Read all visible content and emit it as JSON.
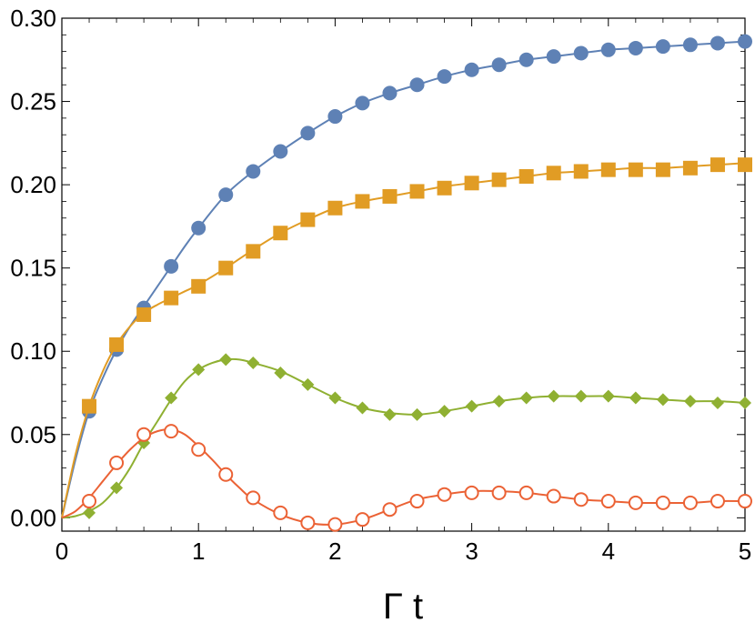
{
  "chart_data": {
    "type": "line",
    "title": "",
    "xlabel": "Γ t",
    "ylabel": "",
    "xlim": [
      0,
      5
    ],
    "ylim": [
      -0.008,
      0.3
    ],
    "grid": false,
    "legend": "none",
    "x_ticks": [
      {
        "value": 0,
        "label": "0"
      },
      {
        "value": 1,
        "label": "1"
      },
      {
        "value": 2,
        "label": "2"
      },
      {
        "value": 3,
        "label": "3"
      },
      {
        "value": 4,
        "label": "4"
      },
      {
        "value": 5,
        "label": "5"
      }
    ],
    "y_ticks": [
      {
        "value": 0.0,
        "label": "0.00"
      },
      {
        "value": 0.05,
        "label": "0.05"
      },
      {
        "value": 0.1,
        "label": "0.10"
      },
      {
        "value": 0.15,
        "label": "0.15"
      },
      {
        "value": 0.2,
        "label": "0.20"
      },
      {
        "value": 0.25,
        "label": "0.25"
      },
      {
        "value": 0.3,
        "label": "0.30"
      }
    ],
    "series": [
      {
        "marker": "filled-circle",
        "color": "#5E81B5",
        "curve": [
          [
            0,
            0
          ],
          [
            0.1,
            0.035
          ],
          [
            0.2,
            0.064
          ],
          [
            0.3,
            0.084
          ],
          [
            0.4,
            0.101
          ],
          [
            0.5,
            0.115
          ],
          [
            0.6,
            0.127
          ],
          [
            0.7,
            0.139
          ],
          [
            0.8,
            0.151
          ],
          [
            0.9,
            0.163
          ],
          [
            1.0,
            0.174
          ],
          [
            1.2,
            0.194
          ],
          [
            1.4,
            0.208
          ],
          [
            1.6,
            0.22
          ],
          [
            1.8,
            0.231
          ],
          [
            2.0,
            0.241
          ],
          [
            2.2,
            0.249
          ],
          [
            2.4,
            0.255
          ],
          [
            2.6,
            0.26
          ],
          [
            2.8,
            0.265
          ],
          [
            3.0,
            0.269
          ],
          [
            3.2,
            0.272
          ],
          [
            3.4,
            0.275
          ],
          [
            3.6,
            0.277
          ],
          [
            3.8,
            0.279
          ],
          [
            4.0,
            0.281
          ],
          [
            4.2,
            0.282
          ],
          [
            4.4,
            0.283
          ],
          [
            4.6,
            0.284
          ],
          [
            4.8,
            0.285
          ],
          [
            5.0,
            0.286
          ]
        ],
        "points": [
          [
            0.2,
            0.064
          ],
          [
            0.4,
            0.101
          ],
          [
            0.6,
            0.126
          ],
          [
            0.8,
            0.151
          ],
          [
            1.0,
            0.174
          ],
          [
            1.2,
            0.194
          ],
          [
            1.4,
            0.208
          ],
          [
            1.6,
            0.22
          ],
          [
            1.8,
            0.231
          ],
          [
            2.0,
            0.241
          ],
          [
            2.2,
            0.249
          ],
          [
            2.4,
            0.255
          ],
          [
            2.6,
            0.26
          ],
          [
            2.8,
            0.265
          ],
          [
            3.0,
            0.269
          ],
          [
            3.2,
            0.272
          ],
          [
            3.4,
            0.275
          ],
          [
            3.6,
            0.277
          ],
          [
            3.8,
            0.279
          ],
          [
            4.0,
            0.281
          ],
          [
            4.2,
            0.282
          ],
          [
            4.4,
            0.283
          ],
          [
            4.6,
            0.284
          ],
          [
            4.8,
            0.285
          ],
          [
            5.0,
            0.286
          ]
        ]
      },
      {
        "marker": "filled-square",
        "color": "#E19C24",
        "curve": [
          [
            0,
            0
          ],
          [
            0.1,
            0.038
          ],
          [
            0.2,
            0.067
          ],
          [
            0.3,
            0.088
          ],
          [
            0.4,
            0.104
          ],
          [
            0.5,
            0.115
          ],
          [
            0.6,
            0.123
          ],
          [
            0.7,
            0.128
          ],
          [
            0.8,
            0.132
          ],
          [
            0.9,
            0.136
          ],
          [
            1.0,
            0.14
          ],
          [
            1.2,
            0.15
          ],
          [
            1.4,
            0.161
          ],
          [
            1.6,
            0.171
          ],
          [
            1.8,
            0.179
          ],
          [
            2.0,
            0.186
          ],
          [
            2.2,
            0.19
          ],
          [
            2.4,
            0.193
          ],
          [
            2.6,
            0.196
          ],
          [
            2.8,
            0.199
          ],
          [
            3.0,
            0.201
          ],
          [
            3.2,
            0.203
          ],
          [
            3.4,
            0.205
          ],
          [
            3.6,
            0.207
          ],
          [
            3.8,
            0.208
          ],
          [
            4.0,
            0.209
          ],
          [
            4.2,
            0.21
          ],
          [
            4.4,
            0.21
          ],
          [
            4.6,
            0.211
          ],
          [
            4.8,
            0.212
          ],
          [
            5.0,
            0.213
          ]
        ],
        "points": [
          [
            0.2,
            0.067
          ],
          [
            0.4,
            0.104
          ],
          [
            0.6,
            0.122
          ],
          [
            0.8,
            0.132
          ],
          [
            1.0,
            0.139
          ],
          [
            1.2,
            0.15
          ],
          [
            1.4,
            0.16
          ],
          [
            1.6,
            0.171
          ],
          [
            1.8,
            0.179
          ],
          [
            2.0,
            0.186
          ],
          [
            2.2,
            0.19
          ],
          [
            2.4,
            0.193
          ],
          [
            2.6,
            0.196
          ],
          [
            2.8,
            0.198
          ],
          [
            3.0,
            0.201
          ],
          [
            3.2,
            0.203
          ],
          [
            3.4,
            0.205
          ],
          [
            3.6,
            0.207
          ],
          [
            3.8,
            0.208
          ],
          [
            4.0,
            0.209
          ],
          [
            4.2,
            0.209
          ],
          [
            4.4,
            0.209
          ],
          [
            4.6,
            0.21
          ],
          [
            4.8,
            0.212
          ],
          [
            5.0,
            0.212
          ]
        ]
      },
      {
        "marker": "filled-diamond",
        "color": "#8FB032",
        "curve": [
          [
            0,
            0
          ],
          [
            0.1,
            0.001
          ],
          [
            0.2,
            0.004
          ],
          [
            0.3,
            0.009
          ],
          [
            0.4,
            0.018
          ],
          [
            0.5,
            0.03
          ],
          [
            0.6,
            0.045
          ],
          [
            0.7,
            0.058
          ],
          [
            0.8,
            0.071
          ],
          [
            0.9,
            0.082
          ],
          [
            1.0,
            0.089
          ],
          [
            1.1,
            0.093
          ],
          [
            1.2,
            0.095
          ],
          [
            1.3,
            0.095
          ],
          [
            1.4,
            0.093
          ],
          [
            1.6,
            0.088
          ],
          [
            1.8,
            0.08
          ],
          [
            2.0,
            0.072
          ],
          [
            2.2,
            0.066
          ],
          [
            2.4,
            0.063
          ],
          [
            2.6,
            0.062
          ],
          [
            2.8,
            0.064
          ],
          [
            3.0,
            0.067
          ],
          [
            3.2,
            0.07
          ],
          [
            3.4,
            0.072
          ],
          [
            3.6,
            0.073
          ],
          [
            3.8,
            0.073
          ],
          [
            4.0,
            0.073
          ],
          [
            4.2,
            0.072
          ],
          [
            4.4,
            0.071
          ],
          [
            4.6,
            0.07
          ],
          [
            4.8,
            0.07
          ],
          [
            5.0,
            0.069
          ]
        ],
        "points": [
          [
            0.2,
            0.003
          ],
          [
            0.4,
            0.018
          ],
          [
            0.6,
            0.045
          ],
          [
            0.8,
            0.072
          ],
          [
            1.0,
            0.089
          ],
          [
            1.2,
            0.095
          ],
          [
            1.4,
            0.093
          ],
          [
            1.6,
            0.087
          ],
          [
            1.8,
            0.08
          ],
          [
            2.0,
            0.072
          ],
          [
            2.2,
            0.066
          ],
          [
            2.4,
            0.062
          ],
          [
            2.6,
            0.062
          ],
          [
            2.8,
            0.064
          ],
          [
            3.0,
            0.067
          ],
          [
            3.2,
            0.07
          ],
          [
            3.4,
            0.072
          ],
          [
            3.6,
            0.073
          ],
          [
            3.8,
            0.073
          ],
          [
            4.0,
            0.073
          ],
          [
            4.2,
            0.072
          ],
          [
            4.4,
            0.071
          ],
          [
            4.6,
            0.07
          ],
          [
            4.8,
            0.069
          ],
          [
            5.0,
            0.069
          ]
        ]
      },
      {
        "marker": "open-circle",
        "color": "#EB6235",
        "curve": [
          [
            0,
            0
          ],
          [
            0.1,
            0.004
          ],
          [
            0.2,
            0.012
          ],
          [
            0.3,
            0.022
          ],
          [
            0.4,
            0.032
          ],
          [
            0.5,
            0.041
          ],
          [
            0.6,
            0.048
          ],
          [
            0.7,
            0.052
          ],
          [
            0.8,
            0.053
          ],
          [
            0.9,
            0.05
          ],
          [
            1.0,
            0.043
          ],
          [
            1.1,
            0.035
          ],
          [
            1.2,
            0.026
          ],
          [
            1.3,
            0.018
          ],
          [
            1.4,
            0.011
          ],
          [
            1.6,
            0.002
          ],
          [
            1.8,
            -0.003
          ],
          [
            2.0,
            -0.004
          ],
          [
            2.2,
            -0.001
          ],
          [
            2.4,
            0.005
          ],
          [
            2.6,
            0.011
          ],
          [
            2.8,
            0.014
          ],
          [
            3.0,
            0.016
          ],
          [
            3.2,
            0.016
          ],
          [
            3.4,
            0.015
          ],
          [
            3.6,
            0.013
          ],
          [
            3.8,
            0.011
          ],
          [
            4.0,
            0.01
          ],
          [
            4.2,
            0.009
          ],
          [
            4.4,
            0.009
          ],
          [
            4.6,
            0.009
          ],
          [
            4.8,
            0.01
          ],
          [
            5.0,
            0.01
          ]
        ],
        "points": [
          [
            0.2,
            0.01
          ],
          [
            0.4,
            0.033
          ],
          [
            0.6,
            0.05
          ],
          [
            0.8,
            0.052
          ],
          [
            1.0,
            0.041
          ],
          [
            1.2,
            0.026
          ],
          [
            1.4,
            0.012
          ],
          [
            1.6,
            0.003
          ],
          [
            1.8,
            -0.003
          ],
          [
            2.0,
            -0.004
          ],
          [
            2.2,
            -0.001
          ],
          [
            2.4,
            0.005
          ],
          [
            2.6,
            0.01
          ],
          [
            2.8,
            0.014
          ],
          [
            3.0,
            0.015
          ],
          [
            3.2,
            0.015
          ],
          [
            3.4,
            0.015
          ],
          [
            3.6,
            0.013
          ],
          [
            3.8,
            0.011
          ],
          [
            4.0,
            0.01
          ],
          [
            4.2,
            0.009
          ],
          [
            4.4,
            0.009
          ],
          [
            4.6,
            0.009
          ],
          [
            4.8,
            0.01
          ],
          [
            5.0,
            0.01
          ]
        ]
      }
    ]
  }
}
